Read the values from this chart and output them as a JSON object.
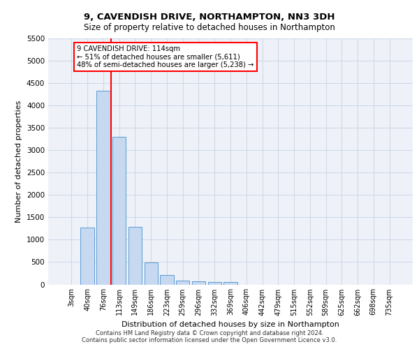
{
  "title_line1": "9, CAVENDISH DRIVE, NORTHAMPTON, NN3 3DH",
  "title_line2": "Size of property relative to detached houses in Northampton",
  "xlabel": "Distribution of detached houses by size in Northampton",
  "ylabel": "Number of detached properties",
  "footer_line1": "Contains HM Land Registry data © Crown copyright and database right 2024.",
  "footer_line2": "Contains public sector information licensed under the Open Government Licence v3.0.",
  "bar_labels": [
    "3sqm",
    "40sqm",
    "76sqm",
    "113sqm",
    "149sqm",
    "186sqm",
    "223sqm",
    "259sqm",
    "296sqm",
    "332sqm",
    "369sqm",
    "406sqm",
    "442sqm",
    "479sqm",
    "515sqm",
    "552sqm",
    "589sqm",
    "625sqm",
    "662sqm",
    "698sqm",
    "735sqm"
  ],
  "bar_values": [
    0,
    1270,
    4330,
    3300,
    1290,
    490,
    210,
    90,
    70,
    55,
    50,
    0,
    0,
    0,
    0,
    0,
    0,
    0,
    0,
    0,
    0
  ],
  "bar_color": "#c6d9f0",
  "bar_edge_color": "#5b9bd5",
  "grid_color": "#d0d8e8",
  "background_color": "#eef2f8",
  "vline_x_index": 3,
  "vline_color": "red",
  "annotation_text": "9 CAVENDISH DRIVE: 114sqm\n← 51% of detached houses are smaller (5,611)\n48% of semi-detached houses are larger (5,238) →",
  "annotation_box_color": "white",
  "annotation_box_edge": "red",
  "ylim_max": 5500,
  "yticks": [
    0,
    500,
    1000,
    1500,
    2000,
    2500,
    3000,
    3500,
    4000,
    4500,
    5000,
    5500
  ]
}
